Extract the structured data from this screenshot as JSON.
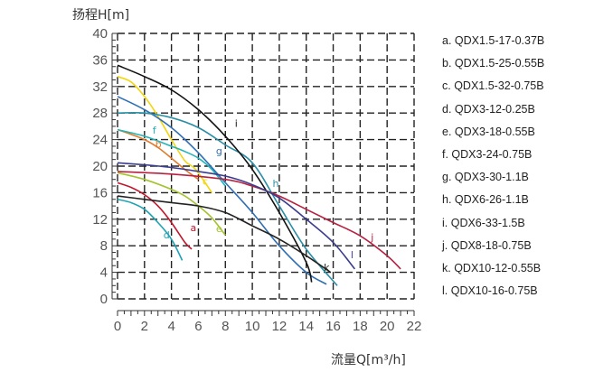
{
  "chart_data": {
    "type": "line",
    "title": "",
    "ylabel": "扬程H[m]",
    "xlabel": "流量Q[m³/h]",
    "xlim": [
      0,
      22
    ],
    "ylim": [
      0,
      40
    ],
    "xticks": [
      "0",
      "2",
      "4",
      "6",
      "8",
      "10",
      "12",
      "14",
      "16",
      "18",
      "20",
      "22"
    ],
    "yticks": [
      "0",
      "4",
      "8",
      "12",
      "16",
      "20",
      "24",
      "28",
      "32",
      "36",
      "40"
    ],
    "series": [
      {
        "id": "a",
        "name": "QDX1.5-17-0.37B",
        "color": "#c0172c",
        "points": [
          [
            0,
            17.5
          ],
          [
            1,
            16.8
          ],
          [
            2,
            15.7
          ],
          [
            3,
            14
          ],
          [
            4,
            11.5
          ],
          [
            5,
            8.5
          ],
          [
            5.5,
            7.5
          ]
        ]
      },
      {
        "id": "b",
        "name": "QDX1.5-25-0.55B",
        "color": "#e07a2b",
        "points": [
          [
            0,
            25.5
          ],
          [
            1,
            24.8
          ],
          [
            2,
            24
          ],
          [
            3,
            22.8
          ],
          [
            4,
            21.2
          ],
          [
            5,
            19.5
          ],
          [
            6,
            18
          ]
        ]
      },
      {
        "id": "c",
        "name": "QDX1.5-32-0.75B",
        "color": "#f2d70f",
        "points": [
          [
            0,
            33.5
          ],
          [
            1,
            32.7
          ],
          [
            2,
            30.5
          ],
          [
            3,
            27.5
          ],
          [
            4,
            24
          ],
          [
            5,
            20.8
          ],
          [
            5.8,
            19.5
          ],
          [
            7,
            16
          ]
        ]
      },
      {
        "id": "d",
        "name": "QDX3-12-0.25B",
        "color": "#1ea3b3",
        "points": [
          [
            0,
            15
          ],
          [
            1,
            14.5
          ],
          [
            2,
            13.5
          ],
          [
            3,
            11.5
          ],
          [
            4,
            9
          ],
          [
            4.8,
            5.8
          ]
        ]
      },
      {
        "id": "e",
        "name": "QDX3-18-0.55B",
        "color": "#a3c42e",
        "points": [
          [
            0,
            19
          ],
          [
            2,
            18
          ],
          [
            4,
            16.5
          ],
          [
            5,
            15.5
          ],
          [
            6,
            14
          ],
          [
            7,
            12.2
          ],
          [
            8,
            9.6
          ]
        ]
      },
      {
        "id": "f",
        "name": "QDX3-24-0.75B",
        "color": "#22b4b8",
        "points": [
          [
            0,
            25.5
          ],
          [
            2,
            24.5
          ],
          [
            4,
            23
          ],
          [
            5,
            22.2
          ],
          [
            6,
            21.2
          ],
          [
            7,
            19.5
          ],
          [
            8,
            17
          ]
        ]
      },
      {
        "id": "g",
        "name": "QDX3-30-1.1B",
        "color": "#2f6eb5",
        "points": [
          [
            0,
            30.5
          ],
          [
            2,
            28.5
          ],
          [
            4,
            25.8
          ],
          [
            6,
            22
          ],
          [
            8,
            17.5
          ],
          [
            10,
            13
          ],
          [
            12,
            8
          ],
          [
            14,
            4
          ],
          [
            15.5,
            2.2
          ]
        ]
      },
      {
        "id": "h",
        "name": "QDX6-26-1.1B",
        "color": "#2a8fa6",
        "points": [
          [
            0,
            28
          ],
          [
            2,
            28
          ],
          [
            4,
            27.3
          ],
          [
            6,
            25.8
          ],
          [
            8,
            23.2
          ],
          [
            10,
            20.5
          ],
          [
            12,
            14
          ],
          [
            14,
            7.5
          ],
          [
            16.3,
            2
          ]
        ]
      },
      {
        "id": "i",
        "name": "QDX6-33-1.5B",
        "color": "#111111",
        "points": [
          [
            0,
            35.2
          ],
          [
            2,
            33.5
          ],
          [
            4,
            31.5
          ],
          [
            6,
            28.5
          ],
          [
            8,
            24.5
          ],
          [
            10,
            19.5
          ],
          [
            12,
            13
          ],
          [
            14,
            5.5
          ],
          [
            14.4,
            2.5
          ]
        ]
      },
      {
        "id": "j",
        "name": "QDX8-18-0.75B",
        "color": "#b82040",
        "points": [
          [
            0,
            19.2
          ],
          [
            4,
            18.8
          ],
          [
            8,
            18
          ],
          [
            10,
            17
          ],
          [
            12,
            15.5
          ],
          [
            14,
            13.5
          ],
          [
            16,
            11.5
          ],
          [
            18,
            9.5
          ],
          [
            20,
            6.5
          ],
          [
            21,
            4.5
          ]
        ]
      },
      {
        "id": "k",
        "name": "QDX10-12-0.55B",
        "color": "#222222",
        "points": [
          [
            0,
            15.5
          ],
          [
            2,
            15
          ],
          [
            4,
            14.5
          ],
          [
            6,
            14
          ],
          [
            8,
            13
          ],
          [
            10,
            11
          ],
          [
            12,
            9
          ],
          [
            14,
            6.5
          ],
          [
            15.8,
            4
          ]
        ]
      },
      {
        "id": "l",
        "name": "QDX10-16-0.75B",
        "color": "#3a3c8e",
        "points": [
          [
            0,
            20.5
          ],
          [
            2,
            20.2
          ],
          [
            4,
            19.8
          ],
          [
            6,
            19.2
          ],
          [
            8,
            18.5
          ],
          [
            10,
            17.2
          ],
          [
            12,
            15.2
          ],
          [
            14,
            12
          ],
          [
            16,
            8.5
          ],
          [
            17.6,
            4.5
          ]
        ]
      }
    ],
    "legend": [
      "a. QDX1.5-17-0.37B",
      "b. QDX1.5-25-0.55B",
      "c. QDX1.5-32-0.75B",
      "d. QDX3-12-0.25B",
      "e. QDX3-18-0.55B",
      "f. QDX3-24-0.75B",
      "g. QDX3-30-1.1B",
      "h. QDX6-26-1.1B",
      "i. QDX6-33-1.5B",
      "j. QDX8-18-0.75B",
      "k. QDX10-12-0.55B",
      "l. QDX10-16-0.75B"
    ],
    "curve_labels": [
      {
        "id": "a",
        "text": "a",
        "at": [
          5.4,
          10.2
        ]
      },
      {
        "id": "b",
        "text": "b",
        "at": [
          2.8,
          22.8
        ]
      },
      {
        "id": "c",
        "text": "c",
        "at": [
          6.3,
          17.2
        ]
      },
      {
        "id": "d",
        "text": "d",
        "at": [
          3.4,
          9.1
        ]
      },
      {
        "id": "e",
        "text": "e",
        "at": [
          7.3,
          10.1
        ]
      },
      {
        "id": "f",
        "text": "f",
        "at": [
          2.6,
          24.9
        ]
      },
      {
        "id": "g",
        "text": "g",
        "at": [
          7.3,
          21.8
        ]
      },
      {
        "id": "h",
        "text": "h",
        "at": [
          11.5,
          16.9
        ]
      },
      {
        "id": "i",
        "text": "i",
        "at": [
          8.7,
          25.9
        ]
      },
      {
        "id": "j",
        "text": "j",
        "at": [
          18.8,
          8.8
        ]
      },
      {
        "id": "k",
        "text": "k",
        "at": [
          15.3,
          4.2
        ]
      },
      {
        "id": "l",
        "text": "l",
        "at": [
          17.3,
          6.1
        ]
      }
    ]
  }
}
